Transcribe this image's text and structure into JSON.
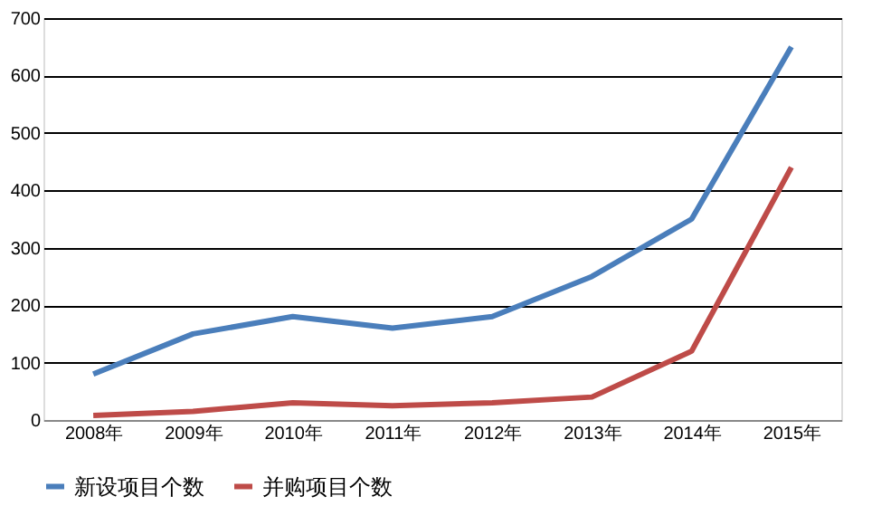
{
  "chart_data": {
    "type": "line",
    "categories": [
      "2008年",
      "2009年",
      "2010年",
      "2011年",
      "2012年",
      "2013年",
      "2014年",
      "2015年"
    ],
    "series": [
      {
        "name": "新设项目个数",
        "color": "#4a7ebb",
        "values": [
          80,
          150,
          180,
          160,
          180,
          250,
          350,
          650
        ]
      },
      {
        "name": "并购项目个数",
        "color": "#be4b48",
        "values": [
          8,
          15,
          30,
          25,
          30,
          40,
          120,
          440
        ]
      }
    ],
    "ylim": [
      0,
      700
    ],
    "yticks": [
      0,
      100,
      200,
      300,
      400,
      500,
      600,
      700
    ],
    "grid": "y",
    "legend": "bottom",
    "marker": "none",
    "line_style": "solid"
  }
}
